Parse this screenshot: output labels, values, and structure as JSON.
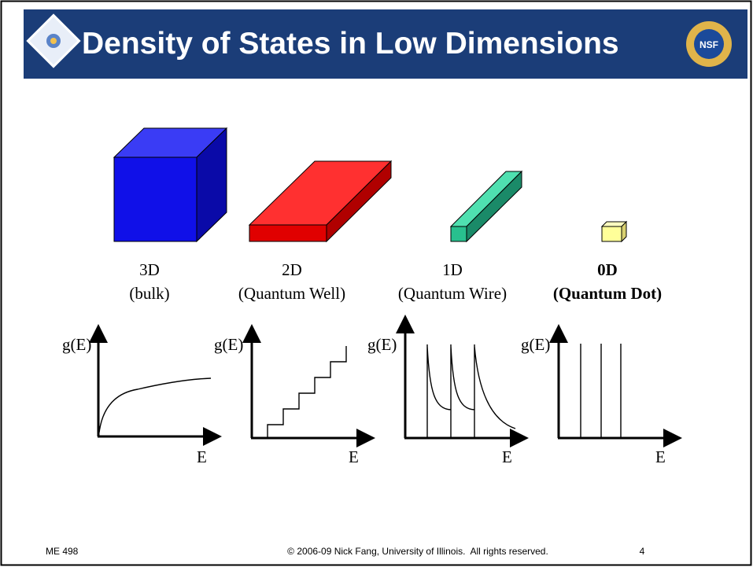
{
  "header": {
    "title": "Density of States in Low Dimensions"
  },
  "panels": [
    {
      "dimension": "3D",
      "description": "(bulk)",
      "y_label": "g(E)",
      "x_label": "E"
    },
    {
      "dimension": "2D",
      "description": "(Quantum Well)",
      "y_label": "g(E)",
      "x_label": "E"
    },
    {
      "dimension": "1D",
      "description": "(Quantum Wire)",
      "y_label": "g(E)",
      "x_label": "E"
    },
    {
      "dimension": "0D",
      "description": "(Quantum Dot)",
      "y_label": "g(E)",
      "x_label": "E"
    }
  ],
  "footer": {
    "left": "ME 498",
    "center": "© 2006-09 Nick Fang, University of Illinois.  All rights reserved.",
    "page": 4
  }
}
